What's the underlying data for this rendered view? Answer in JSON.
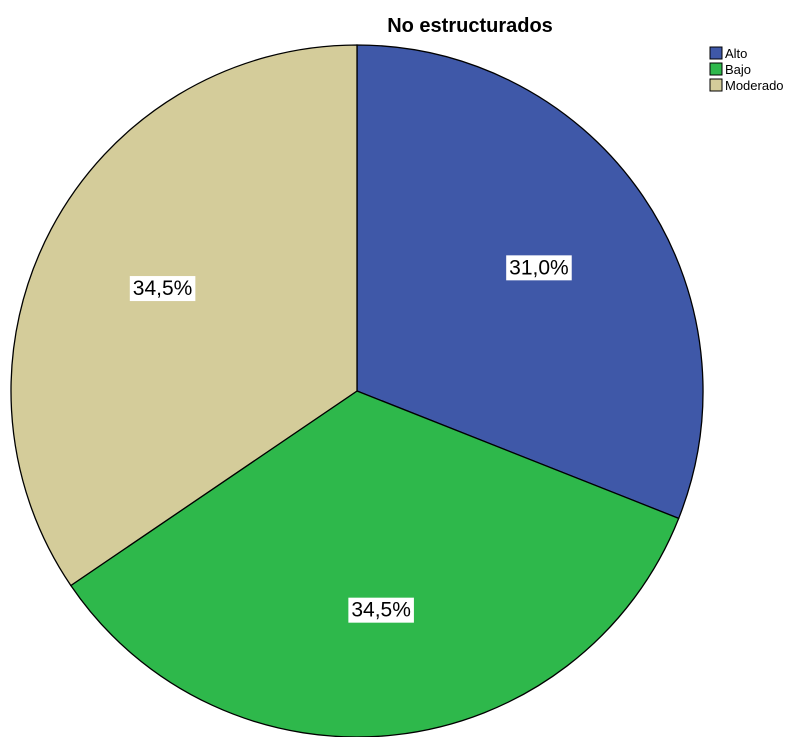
{
  "chart_data": {
    "type": "pie",
    "title": "No estructurados",
    "categories": [
      "Alto",
      "Bajo",
      "Moderado"
    ],
    "values": [
      31.0,
      34.5,
      34.5
    ],
    "labels": [
      "31,0%",
      "34,5%",
      "34,5%"
    ],
    "colors": [
      "#3f58a8",
      "#2eb84b",
      "#d4cc9a"
    ],
    "start_angle": "12 o'clock",
    "direction": "clockwise",
    "legend": {
      "position": "top-right",
      "items": [
        "Alto",
        "Bajo",
        "Moderado"
      ]
    }
  }
}
